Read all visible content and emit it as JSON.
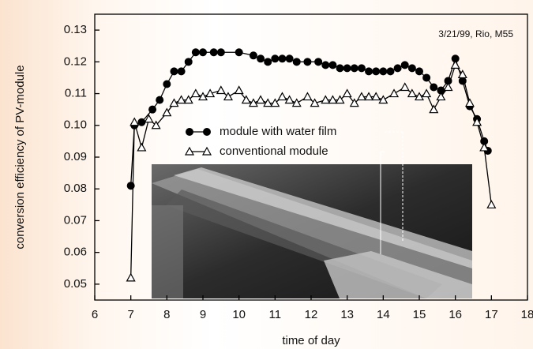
{
  "chart_data": {
    "type": "line",
    "annotation": "3/21/99, Rio, M55",
    "x_label": "time of day",
    "y_label": "conversion efficiency of PV-module",
    "xlim": [
      6,
      18
    ],
    "xticks": [
      6,
      7,
      8,
      9,
      10,
      11,
      12,
      13,
      14,
      15,
      16,
      17,
      18
    ],
    "ylim": [
      0.045,
      0.135
    ],
    "yticks": [
      0.05,
      0.06,
      0.07,
      0.08,
      0.09,
      {
        "value": 0.1,
        "label": "0.10"
      },
      0.11,
      0.12,
      0.13
    ],
    "series": [
      {
        "name": "module with water film",
        "color": "#000000",
        "marker": "circle",
        "x": [
          7.0,
          7.1,
          7.3,
          7.6,
          7.8,
          8.0,
          8.2,
          8.4,
          8.6,
          8.8,
          9.0,
          9.3,
          9.5,
          10.0,
          10.4,
          10.6,
          10.8,
          11.0,
          11.2,
          11.4,
          11.6,
          11.9,
          12.2,
          12.4,
          12.6,
          12.8,
          13.0,
          13.2,
          13.4,
          13.6,
          13.8,
          14.0,
          14.2,
          14.4,
          14.6,
          14.8,
          15.0,
          15.2,
          15.4,
          15.6,
          15.8,
          16.0,
          16.2,
          16.4,
          16.6,
          16.8,
          16.9
        ],
        "values": [
          0.081,
          0.1,
          0.101,
          0.105,
          0.108,
          0.113,
          0.117,
          0.117,
          0.12,
          0.123,
          0.123,
          0.123,
          0.123,
          0.123,
          0.122,
          0.121,
          0.12,
          0.121,
          0.121,
          0.121,
          0.12,
          0.12,
          0.12,
          0.119,
          0.119,
          0.118,
          0.118,
          0.118,
          0.118,
          0.117,
          0.117,
          0.117,
          0.117,
          0.118,
          0.119,
          0.118,
          0.117,
          0.115,
          0.112,
          0.111,
          0.114,
          0.121,
          0.114,
          0.106,
          0.102,
          0.095,
          0.092
        ]
      },
      {
        "name": "conventional module",
        "color": "#000000",
        "marker": "triangle",
        "x": [
          7.0,
          7.1,
          7.3,
          7.5,
          7.7,
          8.0,
          8.2,
          8.4,
          8.6,
          8.8,
          9.0,
          9.2,
          9.5,
          9.7,
          10.0,
          10.2,
          10.4,
          10.6,
          10.8,
          11.0,
          11.2,
          11.4,
          11.6,
          11.9,
          12.1,
          12.4,
          12.6,
          12.8,
          13.0,
          13.2,
          13.4,
          13.6,
          13.8,
          14.0,
          14.3,
          14.6,
          14.8,
          15.0,
          15.2,
          15.4,
          15.6,
          15.8,
          16.0,
          16.2,
          16.4,
          16.6,
          16.8,
          17.0
        ],
        "values": [
          0.052,
          0.101,
          0.093,
          0.102,
          0.1,
          0.104,
          0.107,
          0.108,
          0.108,
          0.11,
          0.109,
          0.11,
          0.111,
          0.109,
          0.111,
          0.108,
          0.107,
          0.108,
          0.107,
          0.107,
          0.109,
          0.108,
          0.107,
          0.109,
          0.107,
          0.108,
          0.108,
          0.108,
          0.11,
          0.107,
          0.109,
          0.109,
          0.109,
          0.108,
          0.11,
          0.112,
          0.11,
          0.109,
          0.11,
          0.105,
          0.109,
          0.112,
          0.119,
          0.116,
          0.107,
          0.101,
          0.093,
          0.075
        ]
      }
    ]
  }
}
